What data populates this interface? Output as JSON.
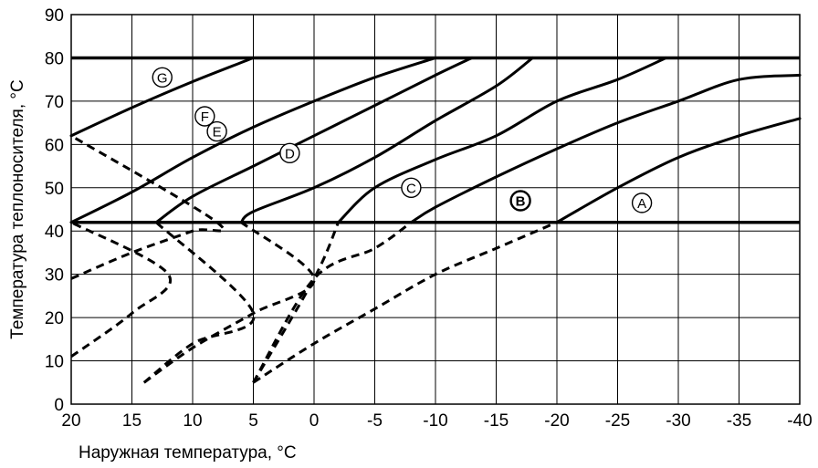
{
  "chart_data": {
    "type": "line",
    "title": "",
    "xlabel": "Наружная температура, °C",
    "ylabel": "Температура теплоносителя, °C",
    "xlim": [
      20,
      -40
    ],
    "ylim": [
      0,
      90
    ],
    "xticks": [
      20,
      15,
      10,
      5,
      0,
      -5,
      -10,
      -15,
      -20,
      -25,
      -30,
      -35,
      -40
    ],
    "yticks": [
      0,
      10,
      20,
      30,
      40,
      50,
      60,
      70,
      80,
      90
    ],
    "grid": true,
    "reference_lines": [
      {
        "y": 80
      },
      {
        "y": 42
      }
    ],
    "series": [
      {
        "name": "A",
        "label_pos": [
          -27,
          46.5
        ],
        "label_bold": false,
        "solid": [
          [
            -20,
            42
          ],
          [
            -25,
            50
          ],
          [
            -30,
            57
          ],
          [
            -35,
            62
          ],
          [
            -40,
            66
          ]
        ],
        "dashed": [
          [
            5,
            5
          ],
          [
            0,
            14
          ],
          [
            -5,
            22
          ],
          [
            -10,
            30
          ],
          [
            -15,
            36
          ],
          [
            -20,
            42
          ]
        ]
      },
      {
        "name": "B",
        "label_pos": [
          -17,
          47
        ],
        "label_bold": true,
        "solid": [
          [
            -8,
            42
          ],
          [
            -10,
            45.5
          ],
          [
            -15,
            52.5
          ],
          [
            -20,
            59
          ],
          [
            -25,
            65
          ],
          [
            -30,
            70
          ],
          [
            -35,
            75
          ],
          [
            -40,
            76
          ]
        ],
        "dashed": [
          [
            5,
            5
          ],
          [
            0,
            29
          ],
          [
            -5,
            36
          ],
          [
            -8,
            42
          ]
        ]
      },
      {
        "name": "C",
        "label_pos": [
          -8,
          50
        ],
        "label_bold": false,
        "solid": [
          [
            -2,
            42
          ],
          [
            -5,
            50
          ],
          [
            -10,
            56.5
          ],
          [
            -15,
            62
          ],
          [
            -20,
            70
          ],
          [
            -25,
            75
          ],
          [
            -29,
            80
          ]
        ],
        "dashed": [
          [
            5,
            5
          ],
          [
            0,
            29
          ],
          [
            -2,
            42
          ]
        ]
      },
      {
        "name": "D",
        "label_pos": [
          2,
          58
        ],
        "label_bold": false,
        "solid": [
          [
            6,
            42
          ],
          [
            5,
            44.5
          ],
          [
            0,
            50
          ],
          [
            -5,
            57
          ],
          [
            -10,
            65.5
          ],
          [
            -15,
            73.5
          ],
          [
            -18,
            80
          ]
        ],
        "dashed": [
          [
            14,
            5
          ],
          [
            10,
            13
          ],
          [
            5,
            21
          ],
          [
            0,
            29
          ],
          [
            6,
            42
          ]
        ]
      },
      {
        "name": "E",
        "label_pos": [
          8,
          63
        ],
        "label_bold": false,
        "solid": [
          [
            13,
            42
          ],
          [
            10,
            48
          ],
          [
            5,
            55
          ],
          [
            0,
            62
          ],
          [
            -5,
            69
          ],
          [
            -10,
            76
          ],
          [
            -13,
            80
          ]
        ],
        "dashed": [
          [
            14,
            5
          ],
          [
            10,
            14
          ],
          [
            5,
            21
          ],
          [
            13,
            42
          ]
        ]
      },
      {
        "name": "F",
        "label_pos": [
          9,
          66.5
        ],
        "label_bold": false,
        "solid": [
          [
            20,
            42
          ],
          [
            15,
            49
          ],
          [
            10,
            57
          ],
          [
            5,
            64
          ],
          [
            0,
            70
          ],
          [
            -5,
            75.5
          ],
          [
            -10,
            80
          ]
        ],
        "dashed": [
          [
            20,
            11
          ],
          [
            15,
            21
          ],
          [
            12,
            30
          ],
          [
            20,
            42
          ]
        ]
      },
      {
        "name": "G",
        "label_pos": [
          12.5,
          75.5
        ],
        "label_bold": false,
        "solid": [
          [
            20,
            62
          ],
          [
            15,
            68.5
          ],
          [
            10,
            74.5
          ],
          [
            5,
            80
          ]
        ],
        "dashed": [
          [
            20,
            29
          ],
          [
            15,
            35
          ],
          [
            10,
            40
          ],
          [
            8,
            42
          ]
        ]
      }
    ]
  }
}
